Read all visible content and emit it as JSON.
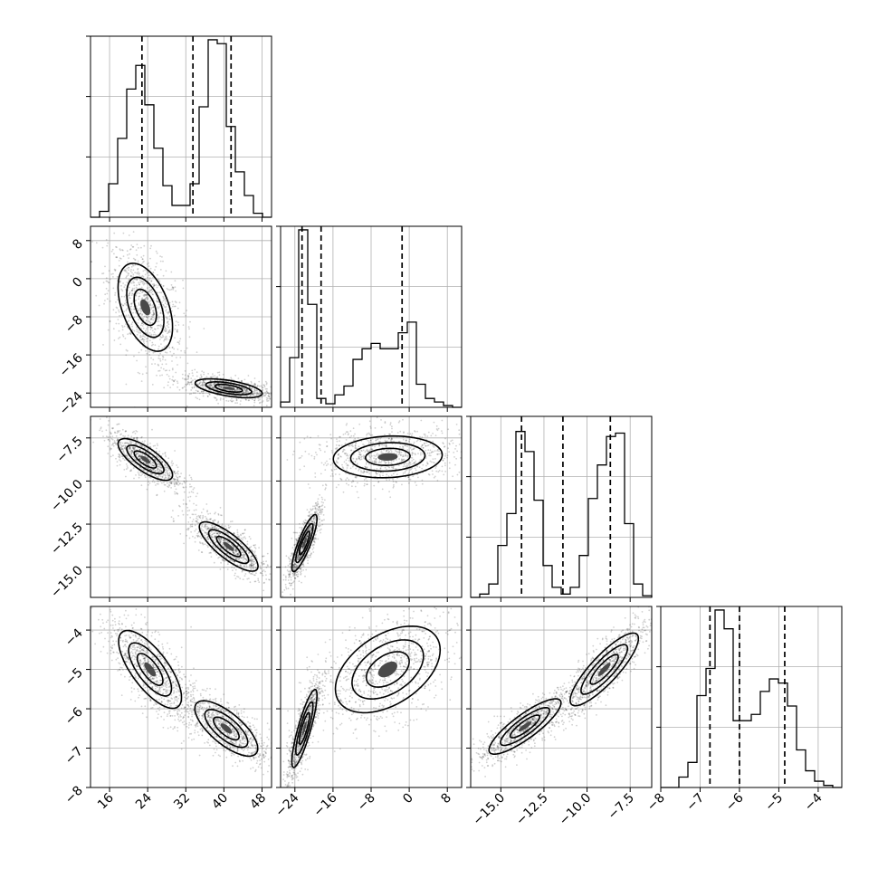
{
  "chart_data": {
    "type": "corner",
    "parameters": [
      {
        "range": [
          12,
          50
        ],
        "ticks": [
          16,
          24,
          32,
          40,
          48
        ],
        "tick_labels": [
          "16",
          "24",
          "32",
          "40",
          "48"
        ],
        "quantiles": [
          22.8,
          33.5,
          41.5
        ],
        "hist_edges": [
          12,
          13.9,
          15.8,
          17.7,
          19.6,
          21.5,
          23.4,
          25.3,
          27.2,
          29.1,
          31,
          32.9,
          34.8,
          36.7,
          38.6,
          40.5,
          42.4,
          44.3,
          46.2,
          48.1,
          50
        ],
        "hist_counts": [
          0,
          0.03,
          0.17,
          0.4,
          0.65,
          0.77,
          0.57,
          0.35,
          0.16,
          0.06,
          0.06,
          0.17,
          0.56,
          0.9,
          0.88,
          0.46,
          0.23,
          0.11,
          0.02,
          0
        ]
      },
      {
        "range": [
          -27,
          11
        ],
        "ticks": [
          -24,
          -16,
          -8,
          0,
          8
        ],
        "tick_labels": [
          "−24",
          "−16",
          "−8",
          "0",
          "8"
        ],
        "quantiles": [
          -22.5,
          -18.5,
          -1.5
        ],
        "hist_edges": [
          -27,
          -25.1,
          -23.2,
          -21.3,
          -19.4,
          -17.5,
          -15.6,
          -13.7,
          -11.8,
          -9.9,
          -8,
          -6.1,
          -4.2,
          -2.3,
          -0.4,
          1.5,
          3.4,
          5.3,
          7.2,
          9.1,
          11
        ],
        "hist_counts": [
          0.03,
          0.28,
          1.0,
          0.58,
          0.05,
          0.02,
          0.07,
          0.12,
          0.27,
          0.33,
          0.36,
          0.33,
          0.33,
          0.42,
          0.48,
          0.13,
          0.05,
          0.03,
          0.01,
          0
        ]
      },
      {
        "range": [
          -16.75,
          -6.25
        ],
        "ticks": [
          -15.0,
          -12.5,
          -10.0,
          -7.5
        ],
        "tick_labels": [
          "−15.0",
          "−12.5",
          "−10.0",
          "−7.5"
        ],
        "quantiles": [
          -13.8,
          -11.4,
          -8.65
        ],
        "hist_edges": [
          -16.75,
          -16.225,
          -15.7,
          -15.175,
          -14.65,
          -14.125,
          -13.6,
          -13.075,
          -12.55,
          -12.025,
          -11.5,
          -10.975,
          -10.45,
          -9.925,
          -9.4,
          -8.875,
          -8.35,
          -7.825,
          -7.3,
          -6.775,
          -6.25
        ],
        "hist_counts": [
          0,
          0.02,
          0.08,
          0.31,
          0.5,
          0.99,
          0.87,
          0.58,
          0.19,
          0.06,
          0.02,
          0.06,
          0.25,
          0.59,
          0.79,
          0.96,
          0.98,
          0.44,
          0.08,
          0.01
        ],
        "scale_max": 1.08
      },
      {
        "range": [
          -8,
          -3.4
        ],
        "ticks": [
          -8,
          -7,
          -6,
          -5,
          -4
        ],
        "tick_labels": [
          "−8",
          "−7",
          "−6",
          "−5",
          "−4"
        ],
        "quantiles": [
          -6.75,
          -6.0,
          -4.85
        ],
        "hist_edges": [
          -8,
          -7.77,
          -7.54,
          -7.31,
          -7.08,
          -6.85,
          -6.62,
          -6.39,
          -6.16,
          -5.93,
          -5.7,
          -5.47,
          -5.24,
          -5.01,
          -4.78,
          -4.55,
          -4.32,
          -4.09,
          -3.86,
          -3.63,
          -3.4
        ],
        "hist_counts": [
          0,
          0,
          0.05,
          0.12,
          0.44,
          0.57,
          0.85,
          0.76,
          0.32,
          0.32,
          0.35,
          0.46,
          0.52,
          0.5,
          0.39,
          0.18,
          0.08,
          0.03,
          0.01,
          0
        ]
      }
    ],
    "pairs": [
      {
        "row": 1,
        "col": 0,
        "modes": [
          {
            "cx": 23.5,
            "cy": -6,
            "sx": 2.6,
            "sy": 4.2,
            "rho": -0.45,
            "n": 900
          },
          {
            "cx": 41,
            "cy": -23,
            "sx": 3.2,
            "sy": 0.9,
            "rho": -0.55,
            "n": 900
          }
        ]
      },
      {
        "row": 2,
        "col": 0,
        "modes": [
          {
            "cx": 23.5,
            "cy": -8.75,
            "sx": 2.6,
            "sy": 0.55,
            "rho": -0.75,
            "n": 900
          },
          {
            "cx": 41,
            "cy": -13.8,
            "sx": 2.8,
            "sy": 0.65,
            "rho": -0.8,
            "n": 900
          }
        ]
      },
      {
        "row": 2,
        "col": 1,
        "modes": [
          {
            "cx": -22,
            "cy": -13.6,
            "sx": 1.2,
            "sy": 0.75,
            "rho": 0.85,
            "n": 900
          },
          {
            "cx": -4.5,
            "cy": -8.6,
            "sx": 5.2,
            "sy": 0.55,
            "rho": 0.1,
            "n": 900
          }
        ]
      },
      {
        "row": 3,
        "col": 0,
        "modes": [
          {
            "cx": 24.5,
            "cy": -5.0,
            "sx": 3.0,
            "sy": 0.45,
            "rho": -0.72,
            "n": 900
          },
          {
            "cx": 40.5,
            "cy": -6.5,
            "sx": 3.0,
            "sy": 0.32,
            "rho": -0.72,
            "n": 900
          }
        ]
      },
      {
        "row": 3,
        "col": 1,
        "modes": [
          {
            "cx": -22,
            "cy": -6.5,
            "sx": 1.2,
            "sy": 0.45,
            "rho": 0.85,
            "n": 900
          },
          {
            "cx": -4.5,
            "cy": -5.0,
            "sx": 5.0,
            "sy": 0.5,
            "rho": 0.45,
            "n": 900
          }
        ]
      },
      {
        "row": 3,
        "col": 2,
        "modes": [
          {
            "cx": -13.6,
            "cy": -6.45,
            "sx": 0.95,
            "sy": 0.32,
            "rho": 0.85,
            "n": 900
          },
          {
            "cx": -9.0,
            "cy": -5.0,
            "sx": 0.9,
            "sy": 0.42,
            "rho": 0.85,
            "n": 900
          }
        ]
      }
    ]
  }
}
